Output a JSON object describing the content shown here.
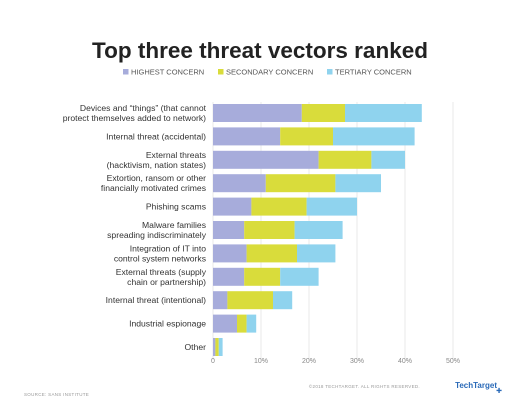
{
  "chart_data": {
    "type": "bar",
    "orientation": "horizontal",
    "stacked": true,
    "title": "Top three threat vectors ranked",
    "categories": [
      [
        "Devices and “things” (that cannot",
        "protect themselves added to network)"
      ],
      [
        "Internal threat (accidental)"
      ],
      [
        "External threats",
        "(hacktivism, nation states)"
      ],
      [
        "Extortion, ransom or other",
        "financially motivated crimes"
      ],
      [
        "Phishing scams"
      ],
      [
        "Malware families",
        "spreading indiscriminately"
      ],
      [
        "Integration of IT into",
        "control system networks"
      ],
      [
        "External threats (supply",
        "chain or partnership)"
      ],
      [
        "Internal threat (intentional)"
      ],
      [
        "Industrial espionage"
      ],
      [
        "Other"
      ]
    ],
    "series": [
      {
        "name": "HIGHEST CONCERN",
        "color": "#a7acdb",
        "values": [
          18.5,
          14,
          22,
          11,
          8,
          6.5,
          7,
          6.5,
          3,
          5,
          0.5
        ]
      },
      {
        "name": "SECONDARY CONCERN",
        "color": "#d9dc3b",
        "values": [
          9,
          11,
          11,
          14.5,
          11.5,
          10.5,
          10.5,
          7.5,
          9.5,
          2,
          0.7
        ]
      },
      {
        "name": "TERTIARY CONCERN",
        "color": "#8fd3ee",
        "values": [
          16,
          17,
          7,
          9.5,
          10.5,
          10,
          8,
          8,
          4,
          2,
          0.8
        ]
      }
    ],
    "xlim": [
      0,
      50
    ],
    "xticks": [
      "0",
      "10%",
      "20%",
      "30%",
      "40%",
      "50%"
    ],
    "legend_position": "top",
    "grid": true
  },
  "footer": {
    "source": "SOURCE: SANS INSTITUTE",
    "rights": "©2018 TECHTARGET. ALL RIGHTS RESERVED.",
    "brand": "TechTarget"
  }
}
